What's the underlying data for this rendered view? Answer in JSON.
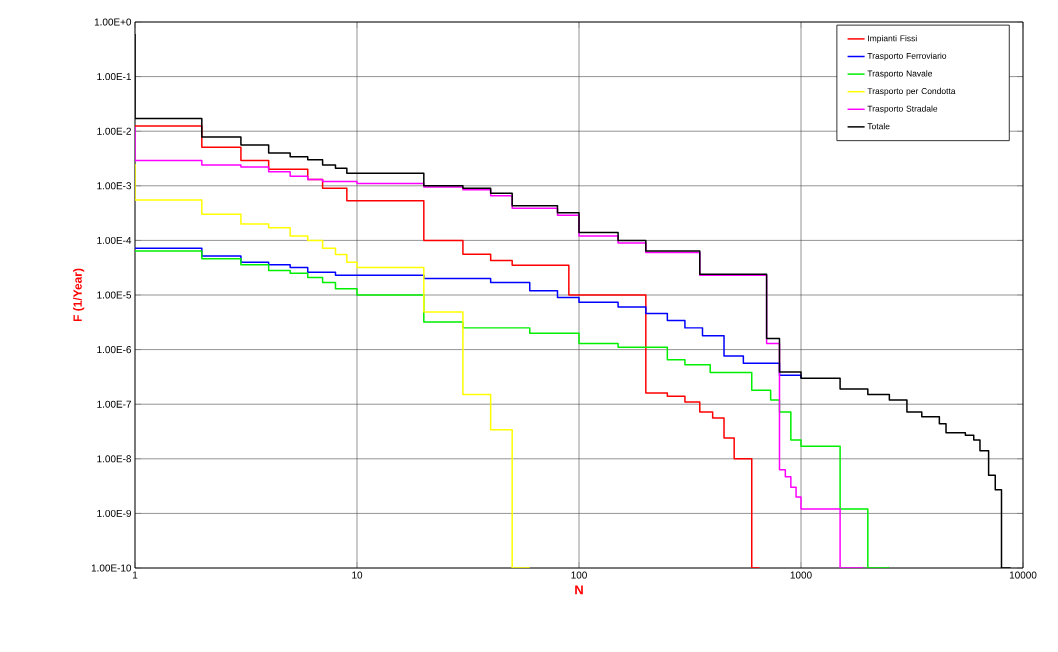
{
  "chart_data": {
    "type": "step",
    "xlabel": "N",
    "ylabel": "F (1/Year)",
    "log": "xy",
    "grid": true,
    "legend": "top right",
    "marker": "none",
    "line_style": "solid",
    "xlim": [
      1,
      10000
    ],
    "ylim": [
      1e-10,
      1
    ],
    "xticks": [
      1,
      10,
      100,
      1000,
      10000
    ],
    "yticks": [
      {
        "value": 1,
        "label": "1.00E+0"
      },
      {
        "value": 0.1,
        "label": "1.00E-1"
      },
      {
        "value": 0.01,
        "label": "1.00E-2"
      },
      {
        "value": 0.001,
        "label": "1.00E-3"
      },
      {
        "value": 0.0001,
        "label": "1.00E-4"
      },
      {
        "value": 1e-05,
        "label": "1.00E-5"
      },
      {
        "value": 1e-06,
        "label": "1.00E-6"
      },
      {
        "value": 1e-07,
        "label": "1.00E-7"
      },
      {
        "value": 1e-08,
        "label": "1.00E-8"
      },
      {
        "value": 1e-09,
        "label": "1.00E-9"
      },
      {
        "value": 1e-10,
        "label": "1.00E-10"
      }
    ],
    "series": [
      {
        "name": "Impianti Fissi",
        "color": "#ff0000",
        "x": [
          1,
          2,
          3,
          4,
          6,
          7,
          9,
          20,
          30,
          40,
          50,
          90,
          200,
          250,
          300,
          350,
          400,
          450,
          500,
          600,
          650
        ],
        "values": [
          0.0125,
          0.0051,
          0.0029,
          0.002,
          0.0013,
          0.0009,
          0.00053,
          0.0001,
          5.6e-05,
          4.3e-05,
          3.5e-05,
          1e-05,
          1.6e-07,
          1.4e-07,
          1.1e-07,
          7.2e-08,
          5.6e-08,
          2.4e-08,
          1e-08,
          1e-10,
          1e-10
        ]
      },
      {
        "name": "Trasporto Ferroviario",
        "color": "#0000ff",
        "x": [
          1,
          2,
          3,
          4,
          5,
          6,
          8,
          20,
          40,
          60,
          80,
          100,
          150,
          200,
          250,
          300,
          360,
          450,
          550,
          800,
          1000
        ],
        "values": [
          7.2e-05,
          5.2e-05,
          4e-05,
          3.6e-05,
          3.2e-05,
          2.6e-05,
          2.3e-05,
          2e-05,
          1.7e-05,
          1.2e-05,
          9e-06,
          7.4e-06,
          6e-06,
          4.6e-06,
          3.4e-06,
          2.5e-06,
          1.8e-06,
          7.6e-07,
          5.6e-07,
          3.4e-07,
          3e-07
        ]
      },
      {
        "name": "Trasporto Navale",
        "color": "#00ee00",
        "x": [
          1,
          2,
          3,
          4,
          5,
          6,
          7,
          8,
          10,
          20,
          30,
          60,
          100,
          150,
          250,
          300,
          390,
          600,
          730,
          800,
          900,
          1000,
          1500,
          2000,
          2500
        ],
        "values": [
          6.4e-05,
          4.6e-05,
          3.6e-05,
          2.8e-05,
          2.5e-05,
          2.1e-05,
          1.7e-05,
          1.3e-05,
          1e-05,
          3.2e-06,
          2.5e-06,
          2e-06,
          1.3e-06,
          1.1e-06,
          6.5e-07,
          5.3e-07,
          3.8e-07,
          1.8e-07,
          1.2e-07,
          7.2e-08,
          2.2e-08,
          1.7e-08,
          1.2e-09,
          1e-10,
          1e-10
        ]
      },
      {
        "name": "Trasporto per Condotta",
        "color": "#ffff00",
        "x": [
          1,
          1,
          2,
          3,
          4,
          5,
          6,
          7,
          8,
          9,
          10,
          20,
          30,
          40,
          50,
          60
        ],
        "values": [
          0.0025,
          0.00055,
          0.0003,
          0.0002,
          0.00017,
          0.00012,
          0.0001,
          7.2e-05,
          5.5e-05,
          4e-05,
          3.2e-05,
          4.9e-06,
          1.5e-07,
          3.4e-08,
          1e-10,
          1e-10
        ]
      },
      {
        "name": "Trasporto Stradale",
        "color": "#ff00ff",
        "x": [
          1,
          1,
          2,
          3,
          4,
          5,
          6,
          7,
          10,
          20,
          30,
          40,
          50,
          80,
          100,
          150,
          200,
          350,
          700,
          800,
          850,
          900,
          950,
          1000,
          1500,
          1900
        ],
        "values": [
          0.012,
          0.0029,
          0.0024,
          0.0022,
          0.0018,
          0.0015,
          0.0013,
          0.0012,
          0.0011,
          0.00095,
          0.00085,
          0.00066,
          0.00039,
          0.00029,
          0.00012,
          9e-05,
          6e-05,
          2.3e-05,
          1.3e-06,
          6.3e-09,
          4.7e-09,
          3e-09,
          2e-09,
          1.2e-09,
          1e-10,
          1e-10
        ]
      },
      {
        "name": "Totale",
        "color": "#000000",
        "x": [
          1,
          1,
          2,
          3,
          4,
          5,
          6,
          7,
          8,
          9,
          20,
          30,
          40,
          50,
          80,
          100,
          150,
          200,
          350,
          700,
          800,
          1000,
          1500,
          2000,
          2500,
          3000,
          3500,
          4200,
          4500,
          5500,
          6000,
          6400,
          7000,
          7500,
          8000,
          8800
        ],
        "values": [
          0.6,
          0.017,
          0.0078,
          0.0056,
          0.004,
          0.0034,
          0.003,
          0.0024,
          0.0021,
          0.0017,
          0.001,
          0.0009,
          0.00073,
          0.00043,
          0.00032,
          0.00014,
          0.0001,
          6.4e-05,
          2.4e-05,
          1.6e-06,
          3.9e-07,
          3e-07,
          1.9e-07,
          1.5e-07,
          1.2e-07,
          7.2e-08,
          5.9e-08,
          4.4e-08,
          3e-08,
          2.7e-08,
          2.2e-08,
          1.4e-08,
          5e-09,
          2.7e-09,
          1e-10,
          1e-10
        ]
      }
    ]
  }
}
